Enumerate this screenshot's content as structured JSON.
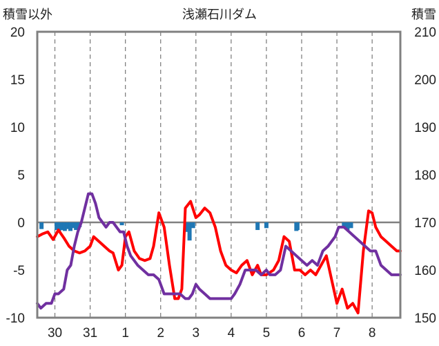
{
  "chart_data": {
    "type": "line",
    "title": "浅瀬石川ダム",
    "left_axis_label": "積雪以外",
    "right_axis_label": "積雪",
    "left_axis": {
      "min": -10,
      "max": 20,
      "ticks": [
        -10,
        -5,
        0,
        5,
        10,
        15,
        20
      ],
      "tick_labels": [
        "-10",
        "-5",
        "0",
        "5",
        "10",
        "15",
        "20"
      ]
    },
    "right_axis": {
      "min": 150,
      "max": 210,
      "ticks": [
        150,
        160,
        170,
        180,
        190,
        200,
        210
      ],
      "tick_labels": [
        "150",
        "160",
        "170",
        "180",
        "190",
        "200",
        "210"
      ]
    },
    "x_axis": {
      "min": 0,
      "max": 10.3,
      "tick_positions": [
        0.5,
        1.5,
        2.5,
        3.5,
        4.5,
        5.5,
        6.5,
        7.5,
        8.5,
        9.5
      ],
      "tick_labels": [
        "30",
        "31",
        "1",
        "2",
        "3",
        "4",
        "5",
        "6",
        "7",
        "8"
      ]
    },
    "grid": {
      "vertical": "dashed",
      "horizontal": "none"
    },
    "zero_line": 0,
    "colors": {
      "red_series": "#ff0000",
      "purple_series": "#7030a0",
      "bars": "#1f77b4",
      "frame": "#808080",
      "grid": "#777777"
    },
    "series": [
      {
        "axis": "left",
        "color": "#ff0000",
        "x": [
          0.0,
          0.15,
          0.3,
          0.45,
          0.6,
          0.75,
          0.9,
          1.05,
          1.2,
          1.35,
          1.5,
          1.6,
          1.75,
          1.9,
          2.05,
          2.15,
          2.3,
          2.4,
          2.5,
          2.6,
          2.75,
          2.9,
          3.05,
          3.2,
          3.3,
          3.45,
          3.6,
          3.75,
          3.9,
          4.0,
          4.1,
          4.2,
          4.35,
          4.5,
          4.6,
          4.75,
          4.9,
          5.05,
          5.2,
          5.35,
          5.5,
          5.65,
          5.8,
          5.95,
          6.1,
          6.25,
          6.35,
          6.5,
          6.7,
          6.85,
          7.0,
          7.15,
          7.3,
          7.45,
          7.6,
          7.75,
          7.9,
          8.05,
          8.2,
          8.35,
          8.5,
          8.65,
          8.8,
          8.95,
          9.1,
          9.25,
          9.4,
          9.5,
          9.6,
          9.75,
          9.9,
          10.05,
          10.2,
          10.3
        ],
        "y": [
          -1.5,
          -1.2,
          -1.0,
          -1.8,
          -0.8,
          -1.6,
          -2.5,
          -3.0,
          -3.2,
          -3.0,
          -2.5,
          -1.5,
          -2.0,
          -2.5,
          -3.0,
          -3.2,
          -5.0,
          -4.5,
          -1.5,
          -1.0,
          -3.0,
          -3.8,
          -4.0,
          -3.8,
          -2.5,
          1.0,
          -0.5,
          -4.5,
          -8.0,
          -8.0,
          -7.0,
          1.5,
          2.2,
          0.5,
          0.8,
          1.5,
          1.0,
          -0.5,
          -3.0,
          -4.5,
          -5.0,
          -5.3,
          -4.5,
          -4.0,
          -5.5,
          -4.5,
          -5.5,
          -5.5,
          -5.0,
          -4.0,
          -1.5,
          -2.0,
          -5.0,
          -5.0,
          -5.5,
          -5.0,
          -5.5,
          -4.5,
          -3.5,
          -6.0,
          -8.5,
          -7.0,
          -9.0,
          -8.5,
          -9.5,
          -3.0,
          1.2,
          1.0,
          -0.5,
          -1.5,
          -2.0,
          -2.5,
          -3.0,
          -3.0
        ]
      },
      {
        "axis": "left",
        "color": "#7030a0",
        "x": [
          0.0,
          0.1,
          0.25,
          0.4,
          0.5,
          0.6,
          0.75,
          0.85,
          0.95,
          1.05,
          1.15,
          1.25,
          1.35,
          1.45,
          1.55,
          1.65,
          1.75,
          1.85,
          1.95,
          2.05,
          2.15,
          2.25,
          2.35,
          2.45,
          2.55,
          2.65,
          2.75,
          2.85,
          3.0,
          3.15,
          3.3,
          3.45,
          3.6,
          3.75,
          3.9,
          4.05,
          4.2,
          4.3,
          4.4,
          4.5,
          4.6,
          4.75,
          4.9,
          5.05,
          5.2,
          5.35,
          5.5,
          5.6,
          5.75,
          5.9,
          6.05,
          6.2,
          6.35,
          6.5,
          6.6,
          6.75,
          6.9,
          7.05,
          7.2,
          7.35,
          7.5,
          7.65,
          7.8,
          7.95,
          8.1,
          8.25,
          8.35,
          8.45,
          8.55,
          8.7,
          8.85,
          9.0,
          9.15,
          9.3,
          9.45,
          9.6,
          9.75,
          9.9,
          10.05,
          10.2,
          10.3
        ],
        "y": [
          -8.5,
          -9.0,
          -8.5,
          -8.5,
          -7.5,
          -7.5,
          -7.0,
          -5.0,
          -4.5,
          -2.5,
          -1.0,
          0.0,
          1.5,
          3.0,
          3.0,
          2.0,
          0.5,
          0.0,
          -0.5,
          0.0,
          0.0,
          -0.5,
          -1.0,
          -1.0,
          -2.5,
          -3.5,
          -4.0,
          -4.5,
          -5.0,
          -5.5,
          -5.5,
          -6.0,
          -7.5,
          -7.5,
          -7.5,
          -7.5,
          -8.0,
          -8.0,
          -7.5,
          -6.5,
          -7.0,
          -7.5,
          -8.0,
          -8.0,
          -8.0,
          -8.0,
          -8.0,
          -7.5,
          -6.5,
          -5.0,
          -5.0,
          -5.0,
          -5.5,
          -5.0,
          -5.5,
          -5.5,
          -5.0,
          -2.5,
          -3.0,
          -3.5,
          -4.0,
          -4.5,
          -4.0,
          -4.5,
          -3.0,
          -2.5,
          -2.0,
          -1.5,
          -0.5,
          -0.5,
          -1.0,
          -1.5,
          -2.0,
          -2.5,
          -3.0,
          -3.0,
          -4.5,
          -5.0,
          -5.5,
          -5.5,
          -5.5
        ]
      }
    ],
    "bars": {
      "axis": "left",
      "color": "#1f77b4",
      "x": [
        0.12,
        0.55,
        0.62,
        0.7,
        0.78,
        0.86,
        0.94,
        1.02,
        1.1,
        1.2,
        2.4,
        4.25,
        4.32,
        4.42,
        6.25,
        6.5,
        7.35,
        7.38,
        8.7,
        8.8,
        8.9
      ],
      "values": [
        -0.7,
        -0.8,
        -0.9,
        -0.8,
        -0.9,
        -0.7,
        -0.9,
        -0.6,
        -0.8,
        -0.5,
        -0.3,
        -1.0,
        -1.9,
        -0.6,
        -0.8,
        -0.6,
        -0.9,
        -0.8,
        -0.6,
        -0.8,
        -0.6
      ]
    }
  }
}
